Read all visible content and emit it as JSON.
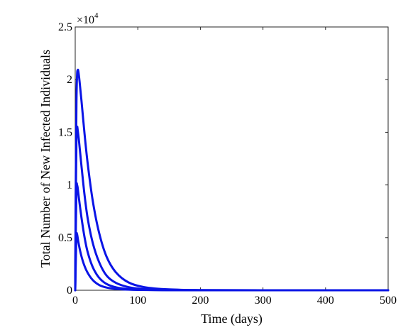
{
  "chart_data": {
    "type": "line",
    "title": "",
    "xlabel": "Time (days)",
    "ylabel": "Total Number of New Infected Individuals",
    "xlim": [
      0,
      500
    ],
    "ylim": [
      0,
      25000
    ],
    "x_ticks": [
      0,
      100,
      200,
      300,
      400,
      500
    ],
    "x_tick_labels": [
      "0",
      "100",
      "200",
      "300",
      "400",
      "500"
    ],
    "y_ticks": [
      0,
      5000,
      10000,
      15000,
      20000,
      25000
    ],
    "y_tick_labels": [
      "0",
      "0.5",
      "1",
      "1.5",
      "2",
      "2.5"
    ],
    "y_multiplier_base": "×10",
    "y_multiplier_exp": "4",
    "grid": false,
    "legend": "none",
    "line_color": "#0a14e6",
    "series": [
      {
        "x": [
          0,
          1,
          2,
          3,
          5,
          8,
          12,
          17,
          23,
          30,
          40,
          55,
          75,
          100,
          140,
          200,
          300,
          500
        ],
        "values": [
          0,
          3000,
          5200,
          5300,
          4600,
          3700,
          2800,
          2000,
          1350,
          850,
          450,
          200,
          80,
          30,
          10,
          0,
          0,
          0
        ]
      },
      {
        "x": [
          0,
          1,
          2,
          3,
          4,
          6,
          10,
          15,
          20,
          28,
          38,
          50,
          65,
          85,
          110,
          150,
          200,
          300,
          500
        ],
        "values": [
          0,
          6000,
          9800,
          10000,
          9700,
          8700,
          6900,
          5000,
          3600,
          2200,
          1200,
          600,
          280,
          110,
          40,
          10,
          0,
          0,
          0
        ]
      },
      {
        "x": [
          0,
          1,
          2,
          3,
          4,
          6,
          10,
          15,
          20,
          28,
          38,
          50,
          65,
          85,
          110,
          150,
          200,
          300,
          500
        ],
        "values": [
          0,
          9000,
          14500,
          15500,
          15200,
          14200,
          11800,
          9000,
          6800,
          4500,
          2700,
          1400,
          700,
          300,
          110,
          30,
          5,
          0,
          0
        ]
      },
      {
        "x": [
          0,
          1,
          2,
          3,
          4,
          5,
          7,
          10,
          15,
          20,
          28,
          38,
          50,
          65,
          85,
          110,
          150,
          200,
          300,
          500
        ],
        "values": [
          0,
          11000,
          18000,
          20500,
          20900,
          20800,
          19800,
          18000,
          14800,
          12000,
          8500,
          5500,
          3200,
          1700,
          750,
          300,
          80,
          20,
          0,
          0
        ]
      }
    ]
  }
}
